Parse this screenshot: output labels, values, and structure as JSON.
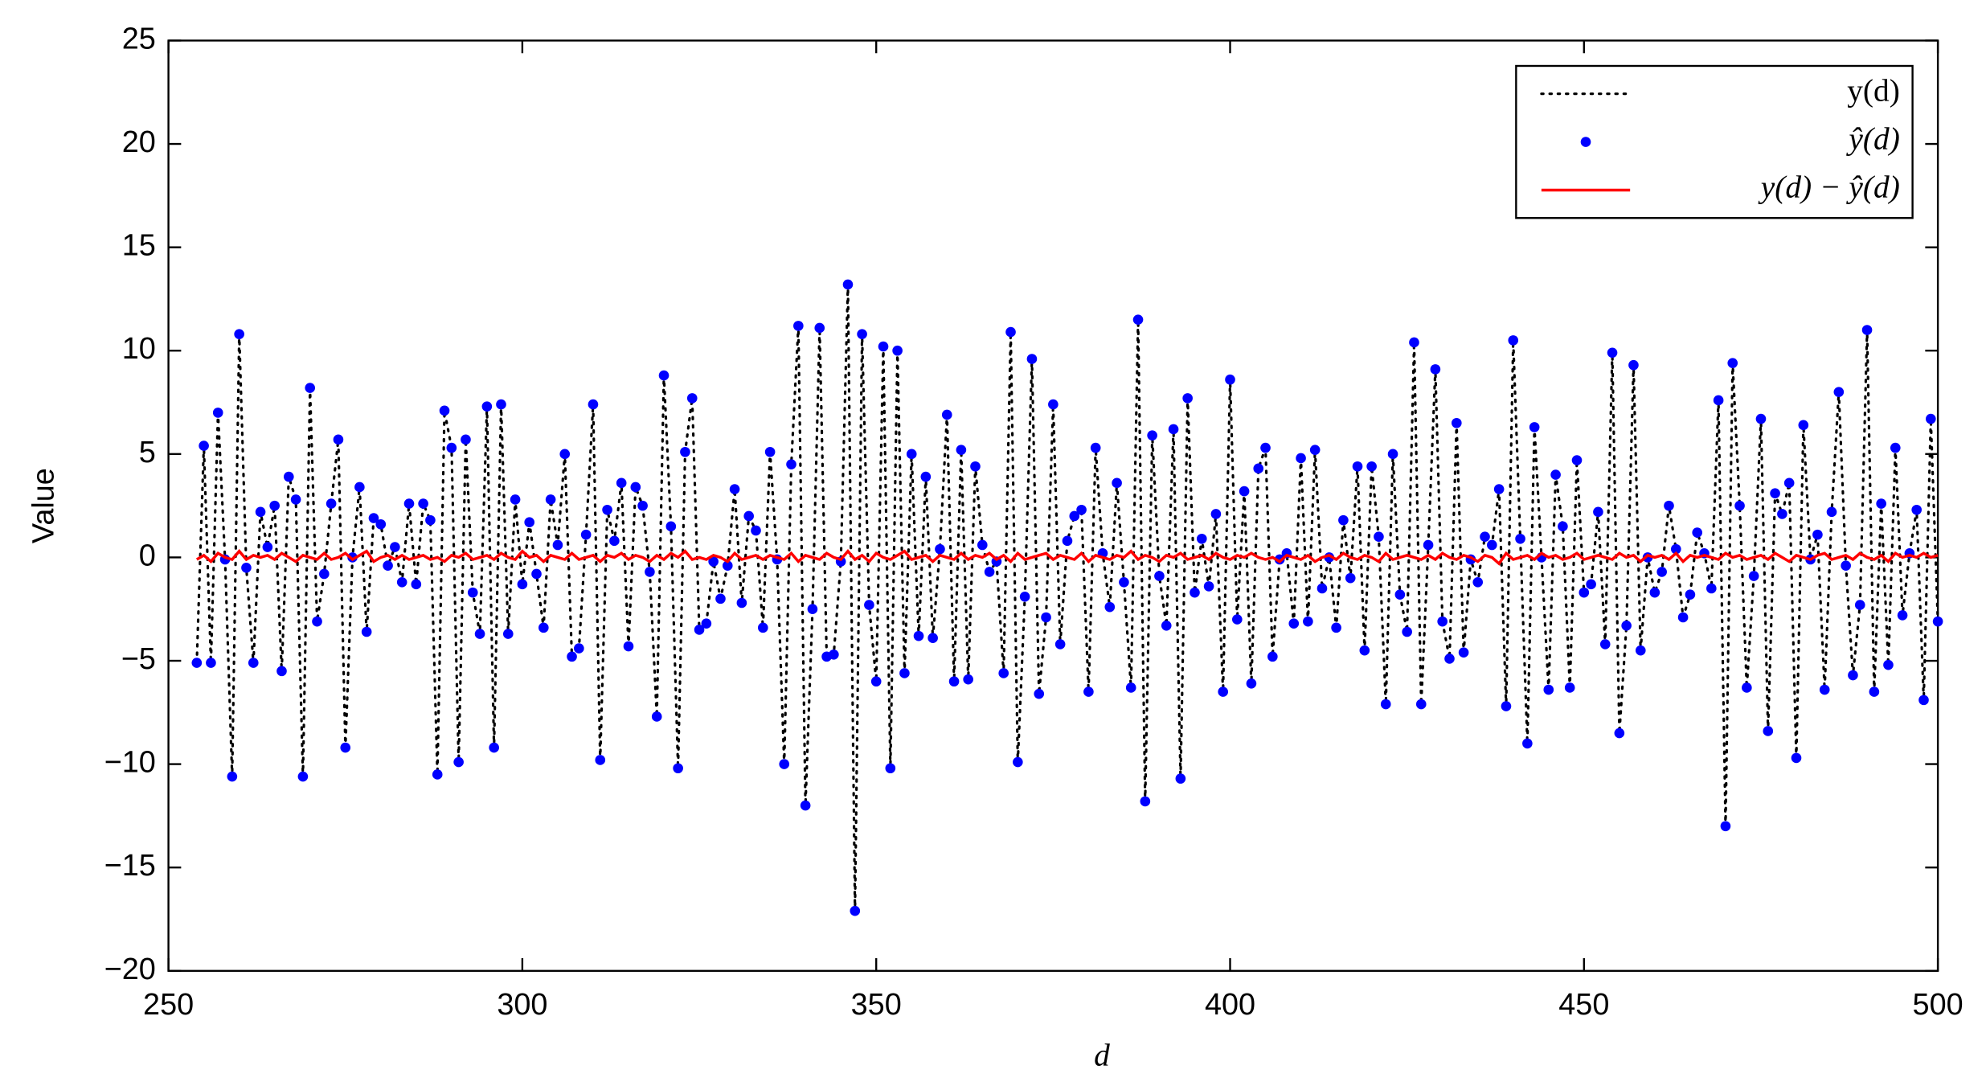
{
  "chart_data": {
    "type": "line",
    "xlabel": "d",
    "ylabel": "Value",
    "xlim": [
      250,
      500
    ],
    "ylim": [
      -20,
      25
    ],
    "xticks": [
      250,
      300,
      350,
      400,
      450,
      500
    ],
    "yticks": [
      {
        "value": -20,
        "label": "−20"
      },
      {
        "value": -15,
        "label": "−15"
      },
      {
        "value": -10,
        "label": "−10"
      },
      {
        "value": -5,
        "label": "−5"
      },
      0,
      5,
      10,
      15,
      20,
      25
    ],
    "legend": "upper right",
    "x": [
      254,
      255,
      256,
      257,
      258,
      259,
      260,
      261,
      262,
      263,
      264,
      265,
      266,
      267,
      268,
      269,
      270,
      271,
      272,
      273,
      274,
      275,
      276,
      277,
      278,
      279,
      280,
      281,
      282,
      283,
      284,
      285,
      286,
      287,
      288,
      289,
      290,
      291,
      292,
      293,
      294,
      295,
      296,
      297,
      298,
      299,
      300,
      301,
      302,
      303,
      304,
      305,
      306,
      307,
      308,
      309,
      310,
      311,
      312,
      313,
      314,
      315,
      316,
      317,
      318,
      319,
      320,
      321,
      322,
      323,
      324,
      325,
      326,
      327,
      328,
      329,
      330,
      331,
      332,
      333,
      334,
      335,
      336,
      337,
      338,
      339,
      340,
      341,
      342,
      343,
      344,
      345,
      346,
      347,
      348,
      349,
      350,
      351,
      352,
      353,
      354,
      355,
      356,
      357,
      358,
      359,
      360,
      361,
      362,
      363,
      364,
      365,
      366,
      367,
      368,
      369,
      370,
      371,
      372,
      373,
      374,
      375,
      376,
      377,
      378,
      379,
      380,
      381,
      382,
      383,
      384,
      385,
      386,
      387,
      388,
      389,
      390,
      391,
      392,
      393,
      394,
      395,
      396,
      397,
      398,
      399,
      400,
      401,
      402,
      403,
      404,
      405,
      406,
      407,
      408,
      409,
      410,
      411,
      412,
      413,
      414,
      415,
      416,
      417,
      418,
      419,
      420,
      421,
      422,
      423,
      424,
      425,
      426,
      427,
      428,
      429,
      430,
      431,
      432,
      433,
      434,
      435,
      436,
      437,
      438,
      439,
      440,
      441,
      442,
      443,
      444,
      445,
      446,
      447,
      448,
      449,
      450,
      451,
      452,
      453,
      454,
      455,
      456,
      457,
      458,
      459,
      460,
      461,
      462,
      463,
      464,
      465,
      466,
      467,
      468,
      469,
      470,
      471,
      472,
      473,
      474,
      475,
      476,
      477,
      478,
      479,
      480,
      481,
      482,
      483,
      484,
      485,
      486,
      487,
      488,
      489,
      490,
      491,
      492,
      493,
      494,
      495,
      496,
      497,
      498,
      499,
      500
    ],
    "series": [
      {
        "name": "y(d)",
        "style": "dotted",
        "color": "#000000",
        "values": [
          -5.1,
          5.4,
          -5.1,
          7.0,
          -0.1,
          -10.6,
          10.8,
          -0.5,
          -5.1,
          2.2,
          0.5,
          2.5,
          -5.5,
          3.9,
          2.8,
          -10.6,
          8.2,
          -3.1,
          -0.8,
          2.6,
          5.7,
          -9.2,
          0,
          3.4,
          -3.6,
          1.9,
          1.6,
          -0.4,
          0.5,
          -1.2,
          2.6,
          -1.3,
          2.6,
          1.8,
          -10.5,
          7.1,
          5.3,
          -9.9,
          5.7,
          -1.7,
          -3.7,
          7.3,
          -9.2,
          7.4,
          -3.7,
          2.8,
          -1.3,
          1.7,
          -0.8,
          -3.4,
          2.8,
          0.6,
          5.0,
          -4.8,
          -4.4,
          1.1,
          7.4,
          -9.8,
          2.3,
          0.8,
          3.6,
          -4.3,
          3.4,
          2.5,
          -0.7,
          -7.7,
          8.8,
          1.5,
          -10.2,
          5.1,
          7.7,
          -3.5,
          -3.2,
          -0.2,
          -2.0,
          -0.4,
          3.3,
          -2.2,
          2.0,
          1.3,
          -3.4,
          5.1,
          -0.1,
          -10.0,
          4.5,
          11.2,
          -12.0,
          -2.5,
          11.1,
          -4.8,
          -4.7,
          -0.2,
          13.2,
          -17.1,
          10.8,
          -2.3,
          -6.0,
          10.2,
          -10.2,
          10.0,
          -5.6,
          5.0,
          -3.8,
          3.9,
          -3.9,
          0.4,
          6.9,
          -6.0,
          5.2,
          -5.9,
          4.4,
          0.6,
          -0.7,
          -0.2,
          -5.6,
          10.9,
          -9.9,
          -1.9,
          9.6,
          -6.6,
          -2.9,
          7.4,
          -4.2,
          0.8,
          2.0,
          2.3,
          -6.5,
          5.3,
          0.2,
          -2.4,
          3.6,
          -1.2,
          -6.3,
          11.5,
          -11.8,
          5.9,
          -0.9,
          -3.3,
          6.2,
          -10.7,
          7.7,
          -1.7,
          0.9,
          -1.4,
          2.1,
          -6.5,
          8.6,
          -3.0,
          3.2,
          -6.1,
          4.3,
          5.3,
          -4.8,
          -0.1,
          0.2,
          -3.2,
          4.8,
          -3.1,
          5.2,
          -1.5,
          0,
          -3.4,
          1.8,
          -1.0,
          4.4,
          -4.5,
          4.4,
          1.0,
          -7.1,
          5.0,
          -1.8,
          -3.6,
          10.4,
          -7.1,
          0.6,
          9.1,
          -3.1,
          -4.9,
          6.5,
          -4.6,
          -0.1,
          -1.2,
          1.0,
          0.6,
          3.3,
          -7.2,
          10.5,
          0.9,
          -9.0,
          6.3,
          0,
          -6.4,
          4.0,
          1.5,
          -6.3,
          4.7,
          -1.7,
          -1.3,
          2.2,
          -4.2,
          9.9,
          -8.5,
          -3.3,
          9.3,
          -4.5,
          0,
          -1.7,
          -0.7,
          2.5,
          0.4,
          -2.9,
          -1.8,
          1.2,
          0.2,
          -1.5,
          7.6,
          -13.0,
          9.4,
          2.5,
          -6.3,
          -0.9,
          6.7,
          -8.4,
          3.1,
          2.1,
          3.6,
          -9.7,
          6.4,
          -0.1,
          1.1,
          -6.4,
          2.2,
          8.0,
          -0.4,
          -5.7,
          -2.3,
          11.0,
          -6.5,
          2.6,
          -5.2,
          5.3,
          -2.8,
          0.2,
          2.3,
          -6.9,
          6.7,
          -3.1
        ]
      },
      {
        "name": "ŷ(d)",
        "style": "markers",
        "color": "#0000ff",
        "values": [
          -5.1,
          5.4,
          -5.1,
          7.0,
          -0.1,
          -10.6,
          10.8,
          -0.5,
          -5.1,
          2.2,
          0.5,
          2.5,
          -5.5,
          3.9,
          2.8,
          -10.6,
          8.2,
          -3.1,
          -0.8,
          2.6,
          5.7,
          -9.2,
          0,
          3.4,
          -3.6,
          1.9,
          1.6,
          -0.4,
          0.5,
          -1.2,
          2.6,
          -1.3,
          2.6,
          1.8,
          -10.5,
          7.1,
          5.3,
          -9.9,
          5.7,
          -1.7,
          -3.7,
          7.3,
          -9.2,
          7.4,
          -3.7,
          2.8,
          -1.3,
          1.7,
          -0.8,
          -3.4,
          2.8,
          0.6,
          5.0,
          -4.8,
          -4.4,
          1.1,
          7.4,
          -9.8,
          2.3,
          0.8,
          3.6,
          -4.3,
          3.4,
          2.5,
          -0.7,
          -7.7,
          8.8,
          1.5,
          -10.2,
          5.1,
          7.7,
          -3.5,
          -3.2,
          -0.2,
          -2.0,
          -0.4,
          3.3,
          -2.2,
          2.0,
          1.3,
          -3.4,
          5.1,
          -0.1,
          -10.0,
          4.5,
          11.2,
          -12.0,
          -2.5,
          11.1,
          -4.8,
          -4.7,
          -0.2,
          13.2,
          -17.1,
          10.8,
          -2.3,
          -6.0,
          10.2,
          -10.2,
          10.0,
          -5.6,
          5.0,
          -3.8,
          3.9,
          -3.9,
          0.4,
          6.9,
          -6.0,
          5.2,
          -5.9,
          4.4,
          0.6,
          -0.7,
          -0.2,
          -5.6,
          10.9,
          -9.9,
          -1.9,
          9.6,
          -6.6,
          -2.9,
          7.4,
          -4.2,
          0.8,
          2.0,
          2.3,
          -6.5,
          5.3,
          0.2,
          -2.4,
          3.6,
          -1.2,
          -6.3,
          11.5,
          -11.8,
          5.9,
          -0.9,
          -3.3,
          6.2,
          -10.7,
          7.7,
          -1.7,
          0.9,
          -1.4,
          2.1,
          -6.5,
          8.6,
          -3.0,
          3.2,
          -6.1,
          4.3,
          5.3,
          -4.8,
          -0.1,
          0.2,
          -3.2,
          4.8,
          -3.1,
          5.2,
          -1.5,
          0,
          -3.4,
          1.8,
          -1.0,
          4.4,
          -4.5,
          4.4,
          1.0,
          -7.1,
          5.0,
          -1.8,
          -3.6,
          10.4,
          -7.1,
          0.6,
          9.1,
          -3.1,
          -4.9,
          6.5,
          -4.6,
          -0.1,
          -1.2,
          1.0,
          0.6,
          3.3,
          -7.2,
          10.5,
          0.9,
          -9.0,
          6.3,
          0,
          -6.4,
          4.0,
          1.5,
          -6.3,
          4.7,
          -1.7,
          -1.3,
          2.2,
          -4.2,
          9.9,
          -8.5,
          -3.3,
          9.3,
          -4.5,
          0,
          -1.7,
          -0.7,
          2.5,
          0.4,
          -2.9,
          -1.8,
          1.2,
          0.2,
          -1.5,
          7.6,
          -13.0,
          9.4,
          2.5,
          -6.3,
          -0.9,
          6.7,
          -8.4,
          3.1,
          2.1,
          3.6,
          -9.7,
          6.4,
          -0.1,
          1.1,
          -6.4,
          2.2,
          8.0,
          -0.4,
          -5.7,
          -2.3,
          11.0,
          -6.5,
          2.6,
          -5.2,
          5.3,
          -2.8,
          0.2,
          2.3,
          -6.9,
          6.7,
          -3.1
        ]
      },
      {
        "name": "y(d) − ŷ(d)",
        "style": "solid",
        "color": "#ff0000",
        "values": [
          -0.1,
          0.1,
          -0.2,
          0.2,
          0,
          -0.1,
          0.3,
          -0.1,
          0.1,
          0,
          0.1,
          -0.1,
          0.2,
          0,
          -0.2,
          0.1,
          0,
          -0.1,
          0.2,
          -0.1,
          0,
          0.2,
          -0.1,
          0.1,
          0.3,
          -0.2,
          0,
          0.1,
          -0.1,
          0.1,
          -0.1,
          0,
          0.1,
          -0.1,
          0,
          -0.2,
          0.1,
          0,
          0.2,
          -0.1,
          0,
          0.1,
          -0.1,
          0.2,
          0,
          -0.1,
          0.3,
          0,
          0.1,
          -0.2,
          0.1,
          0,
          -0.1,
          0.2,
          -0.1,
          0,
          0.1,
          -0.2,
          0.1,
          0,
          0.2,
          -0.1,
          0.1,
          0,
          -0.2,
          0.1,
          -0.1,
          0.2,
          0,
          0.3,
          -0.1,
          0,
          -0.1,
          0.1,
          0,
          -0.2,
          0.2,
          -0.1,
          0,
          0.1,
          -0.1,
          0.1,
          0,
          -0.1,
          0.2,
          -0.2,
          0.1,
          0,
          -0.1,
          0.2,
          0,
          -0.1,
          0.3,
          -0.1,
          0.1,
          -0.2,
          0.2,
          0,
          -0.1,
          0.1,
          0.3,
          -0.1,
          0,
          0.1,
          -0.2,
          0.1,
          0,
          -0.1,
          0.2,
          -0.1,
          0.1,
          0,
          0.2,
          -0.1,
          0.1,
          -0.2,
          0.2,
          -0.1,
          0,
          0.1,
          0.2,
          -0.1,
          0.1,
          0,
          -0.1,
          0.2,
          -0.2,
          0.1,
          0,
          -0.1,
          0.1,
          0,
          0.3,
          -0.1,
          0.1,
          0,
          -0.2,
          0.1,
          0,
          0.2,
          -0.1,
          0,
          0.1,
          -0.1,
          0.2,
          0,
          -0.1,
          0.1,
          0,
          0.2,
          0,
          -0.1,
          0,
          -0.2,
          0.1,
          0,
          -0.1,
          0.1,
          -0.2,
          0,
          0.1,
          -0.1,
          0.2,
          0,
          -0.1,
          0.1,
          0,
          -0.2,
          0.2,
          -0.1,
          0,
          0.1,
          0,
          -0.1,
          0.1,
          -0.1,
          0.2,
          0,
          -0.1,
          0.1,
          0,
          -0.2,
          0.1,
          0,
          -0.3,
          0.2,
          -0.1,
          0,
          0.1,
          -0.1,
          0.2,
          0,
          0.1,
          -0.1,
          0,
          0.2,
          -0.1,
          0,
          0.1,
          0,
          -0.1,
          0.2,
          0,
          0.1,
          -0.2,
          0.1,
          0,
          0.1,
          -0.1,
          0.2,
          -0.2,
          0.1,
          0,
          0.1,
          0,
          -0.1,
          0.2,
          0,
          0.1,
          -0.1,
          0,
          0.1,
          -0.1,
          0.2,
          0,
          -0.2,
          0.1,
          0,
          -0.1,
          0.1,
          0.2,
          -0.1,
          0,
          0.1,
          -0.1,
          0.2,
          0,
          -0.1,
          0.1,
          -0.2,
          0.2,
          0,
          0.1,
          0,
          0.2,
          0,
          0.1
        ]
      }
    ]
  }
}
